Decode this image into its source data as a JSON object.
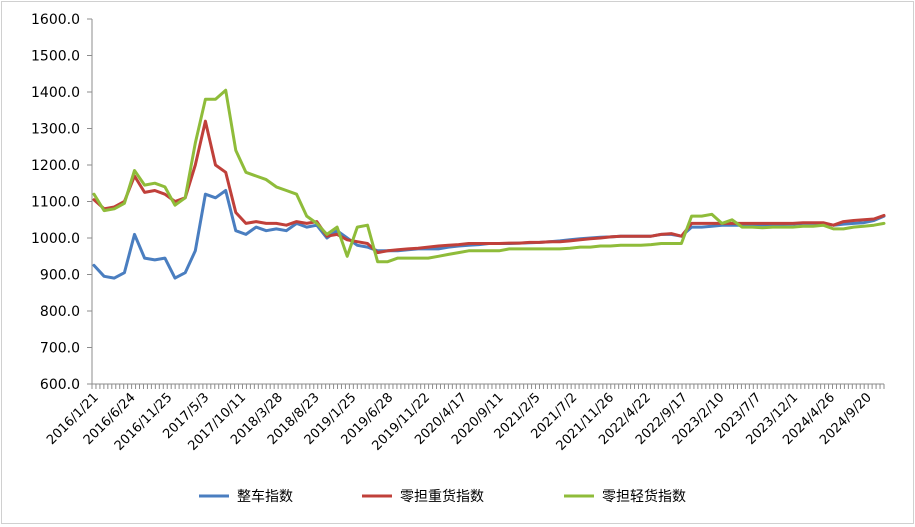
{
  "chart_data": {
    "type": "line",
    "title": "",
    "xlabel": "",
    "ylabel": "",
    "ylim": [
      600,
      1600
    ],
    "yticks": [
      "1600.0",
      "1500.0",
      "1400.0",
      "1300.0",
      "1200.0",
      "1100.0",
      "1000.0",
      "900.0",
      "800.0",
      "700.0",
      "600.0"
    ],
    "xticks": [
      "2016/1/21",
      "2016/6/24",
      "2016/11/25",
      "2017/5/3",
      "2017/10/11",
      "2018/3/28",
      "2018/8/23",
      "2019/1/25",
      "2019/6/28",
      "2019/11/22",
      "2020/4/17",
      "2020/9/11",
      "2021/2/5",
      "2021/7/2",
      "2021/11/26",
      "2022/4/22",
      "2022/9/17",
      "2023/2/10",
      "2023/7/7",
      "2023/12/1",
      "2024/4/26",
      "2024/9/20"
    ],
    "x": [
      "2016/1/21",
      "2016/2/18",
      "2016/3/24",
      "2016/4/28",
      "2016/6/2",
      "2016/6/24",
      "2016/7/28",
      "2016/8/25",
      "2016/9/22",
      "2016/10/27",
      "2016/11/25",
      "2016/12/22",
      "2017/1/26",
      "2017/3/2",
      "2017/4/6",
      "2017/5/3",
      "2017/6/8",
      "2017/7/13",
      "2017/8/10",
      "2017/9/14",
      "2017/10/11",
      "2017/11/16",
      "2017/12/21",
      "2018/1/25",
      "2018/3/1",
      "2018/3/28",
      "2018/5/3",
      "2018/6/7",
      "2018/7/12",
      "2018/8/23",
      "2018/10/11",
      "2018/11/22",
      "2018/12/27",
      "2019/1/25",
      "2019/3/7",
      "2019/4/11",
      "2019/5/23",
      "2019/6/28",
      "2019/8/15",
      "2019/9/26",
      "2019/11/22",
      "2020/1/16",
      "2020/2/27",
      "2020/4/17",
      "2020/6/4",
      "2020/7/23",
      "2020/9/11",
      "2020/10/29",
      "2020/12/17",
      "2021/2/5",
      "2021/3/25",
      "2021/5/13",
      "2021/7/2",
      "2021/8/19",
      "2021/10/8",
      "2021/11/26",
      "2022/1/14",
      "2022/3/4",
      "2022/4/22",
      "2022/6/10",
      "2022/7/29",
      "2022/9/17",
      "2022/11/4",
      "2022/12/23",
      "2023/2/10",
      "2023/3/31",
      "2023/5/19",
      "2023/7/7",
      "2023/8/25",
      "2023/10/13",
      "2023/12/1",
      "2024/1/19",
      "2024/3/8",
      "2024/4/26",
      "2024/6/14",
      "2024/8/2",
      "2024/9/20",
      "2024/11/8",
      "2024/12/27"
    ],
    "series": [
      {
        "name": "整车指数",
        "color": "#4a7ec0",
        "values": [
          925,
          895,
          890,
          905,
          1010,
          945,
          940,
          945,
          890,
          905,
          965,
          1120,
          1110,
          1130,
          1020,
          1010,
          1030,
          1020,
          1025,
          1020,
          1040,
          1030,
          1035,
          1000,
          1020,
          1000,
          980,
          975,
          965,
          965,
          965,
          968,
          970,
          970,
          970,
          975,
          978,
          980,
          982,
          985,
          985,
          985,
          986,
          987,
          988,
          990,
          992,
          995,
          998,
          1000,
          1002,
          1003,
          1005,
          1005,
          1005,
          1005,
          1010,
          1010,
          1005,
          1030,
          1030,
          1032,
          1035,
          1035,
          1035,
          1036,
          1036,
          1036,
          1037,
          1038,
          1040,
          1040,
          1040,
          1035,
          1038,
          1040,
          1042,
          1048,
          1060
        ]
      },
      {
        "name": "零担重货指数",
        "color": "#c0403a",
        "values": [
          1105,
          1080,
          1085,
          1100,
          1170,
          1125,
          1130,
          1120,
          1100,
          1110,
          1200,
          1320,
          1200,
          1180,
          1070,
          1040,
          1045,
          1040,
          1040,
          1035,
          1045,
          1040,
          1045,
          1005,
          1010,
          995,
          990,
          985,
          960,
          965,
          968,
          970,
          972,
          975,
          978,
          980,
          982,
          985,
          985,
          985,
          985,
          986,
          986,
          988,
          988,
          990,
          990,
          992,
          995,
          998,
          1000,
          1003,
          1005,
          1005,
          1005,
          1005,
          1010,
          1012,
          1005,
          1040,
          1040,
          1040,
          1040,
          1040,
          1040,
          1040,
          1040,
          1040,
          1040,
          1040,
          1042,
          1042,
          1042,
          1035,
          1045,
          1048,
          1050,
          1052,
          1062
        ]
      },
      {
        "name": "零担轻货指数",
        "color": "#8fbc3a",
        "values": [
          1120,
          1075,
          1080,
          1095,
          1185,
          1145,
          1150,
          1140,
          1090,
          1110,
          1260,
          1380,
          1380,
          1405,
          1240,
          1180,
          1170,
          1160,
          1140,
          1130,
          1120,
          1060,
          1040,
          1010,
          1030,
          950,
          1030,
          1035,
          935,
          935,
          945,
          945,
          945,
          945,
          950,
          955,
          960,
          965,
          965,
          965,
          965,
          970,
          970,
          970,
          970,
          970,
          970,
          972,
          975,
          975,
          978,
          978,
          980,
          980,
          980,
          982,
          985,
          985,
          985,
          1060,
          1060,
          1065,
          1040,
          1050,
          1030,
          1030,
          1028,
          1030,
          1030,
          1030,
          1032,
          1032,
          1035,
          1025,
          1025,
          1030,
          1032,
          1035,
          1040
        ]
      }
    ],
    "legend": {
      "position": "bottom"
    }
  }
}
